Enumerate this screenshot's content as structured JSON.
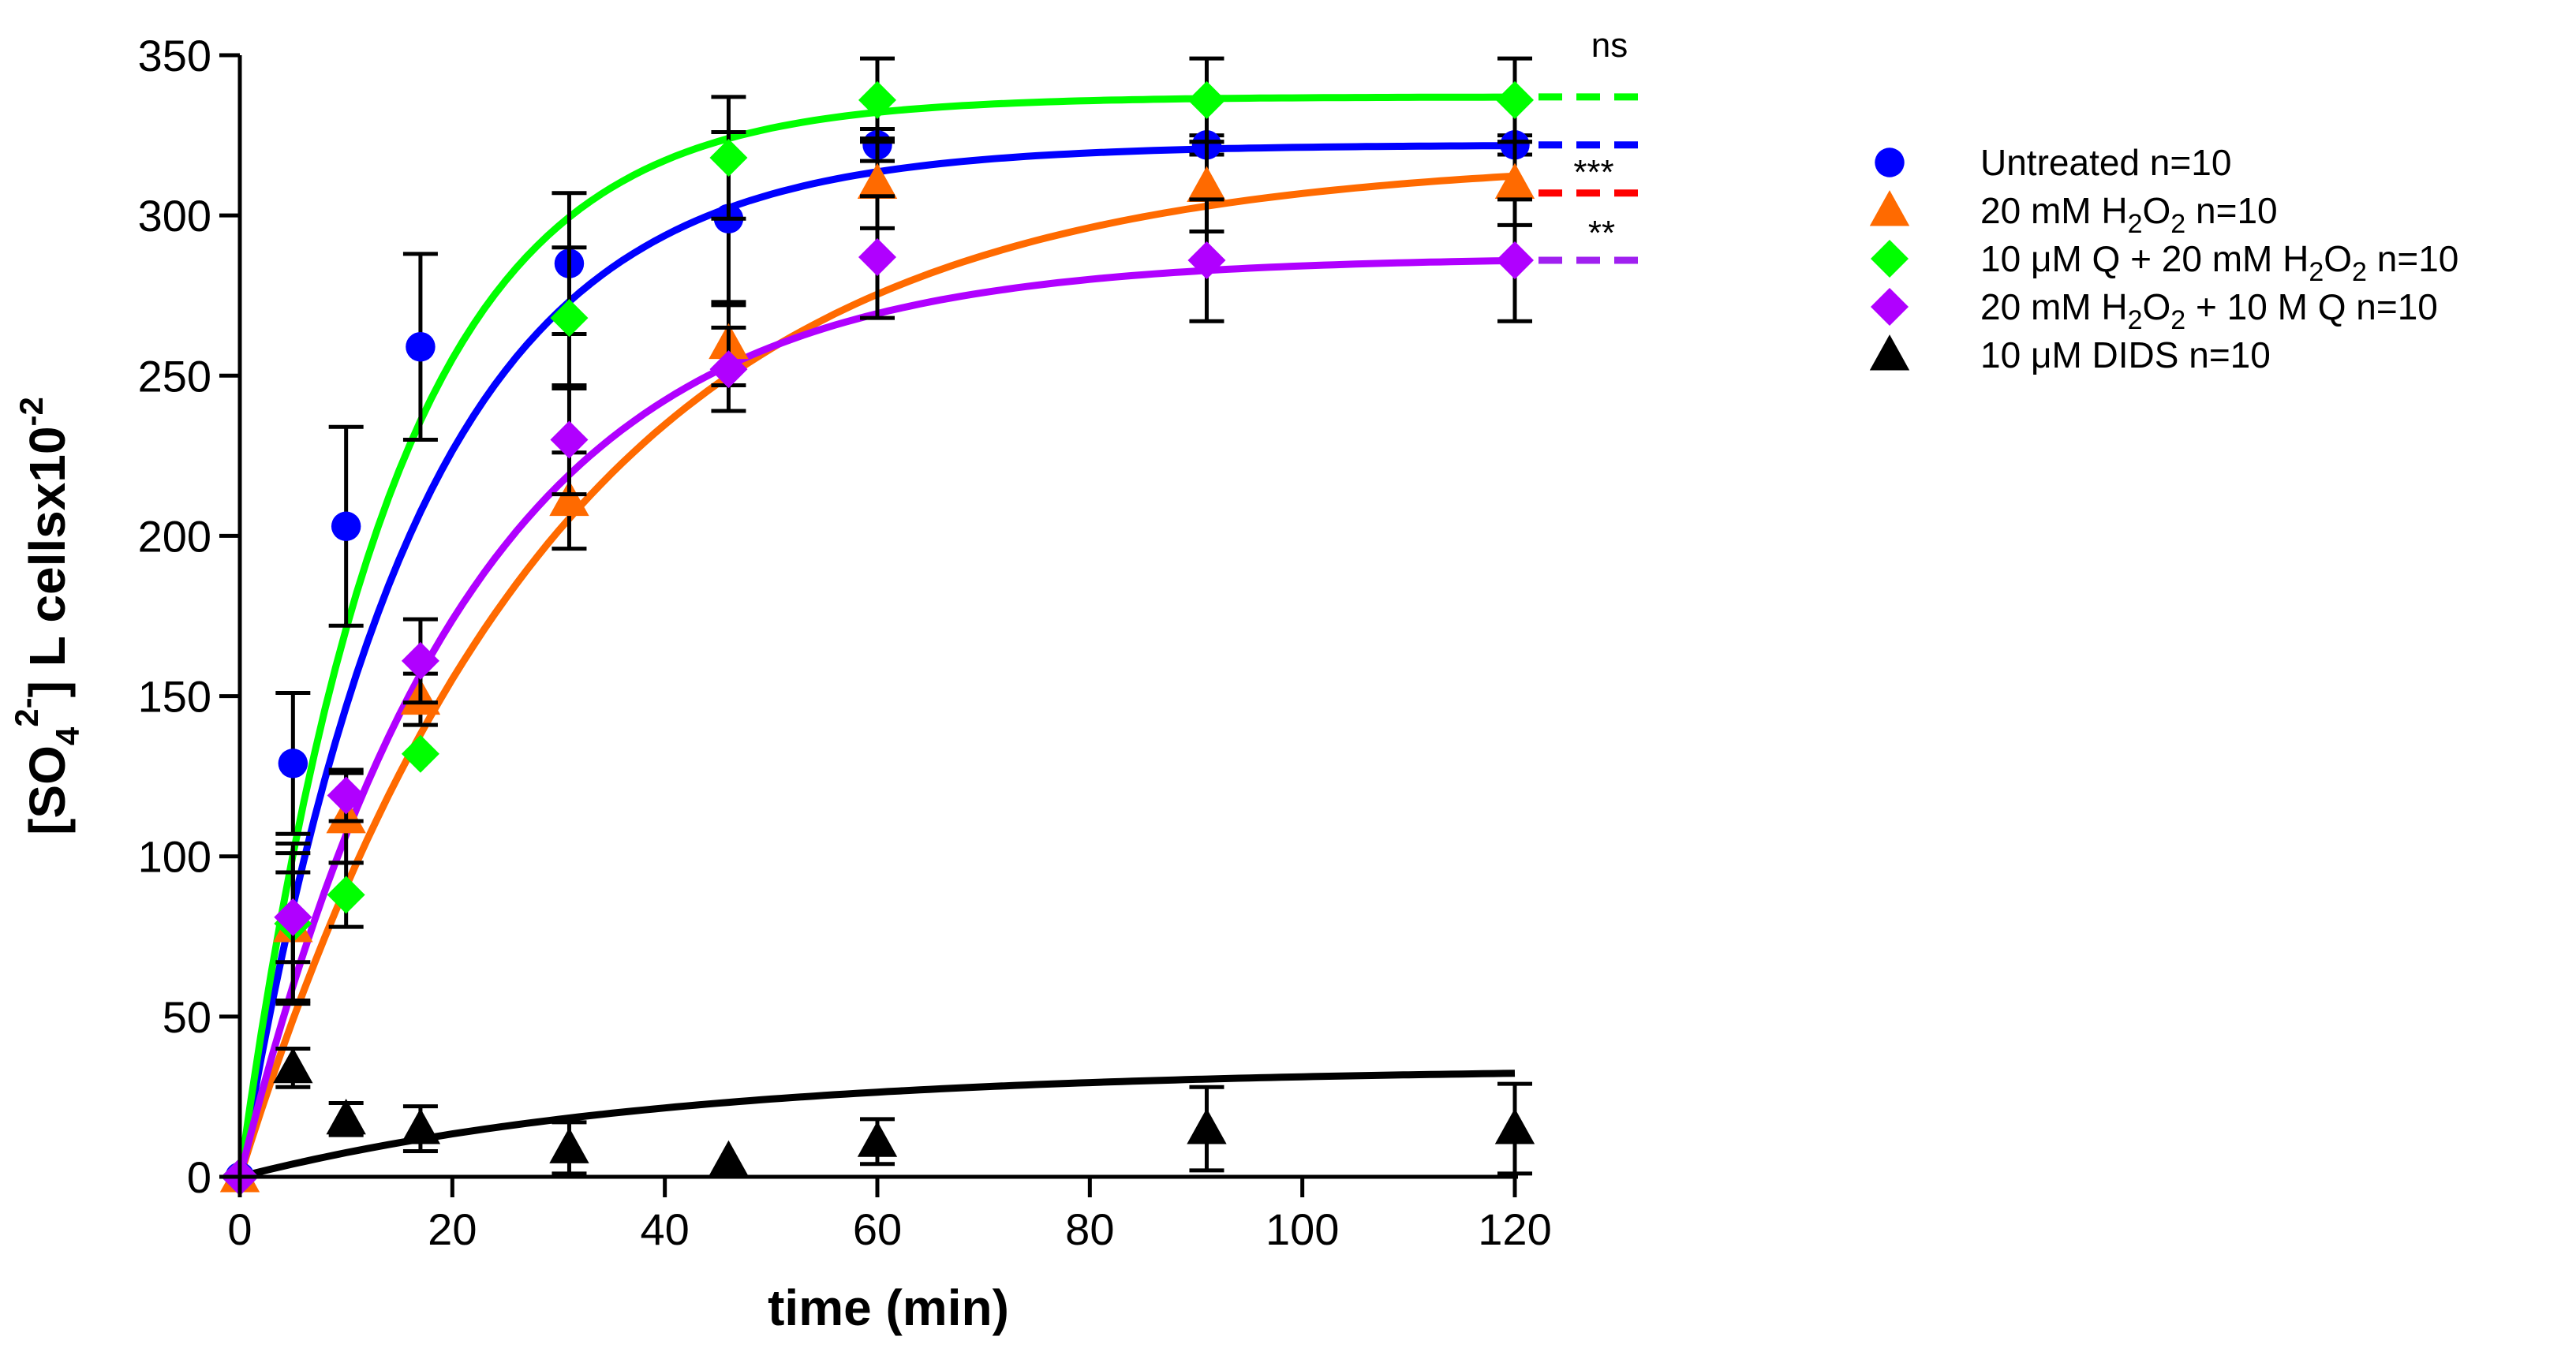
{
  "chart_data": {
    "type": "scatter",
    "title": "",
    "xlabel": "time (min)",
    "ylabel": "[SO4 2-] L cellsx10-2",
    "ylabel_parts": {
      "a": "[SO",
      "b": "4",
      "c": "2-",
      "d": "] L cellsx10",
      "e": "-2"
    },
    "xlim": [
      0,
      120
    ],
    "ylim": [
      0,
      350
    ],
    "xticks": [
      0,
      20,
      40,
      60,
      80,
      100,
      120
    ],
    "yticks": [
      0,
      50,
      100,
      150,
      200,
      250,
      300,
      350
    ],
    "xtick_labels": [
      "0",
      "20",
      "40",
      "60",
      "80",
      "100",
      "120"
    ],
    "ytick_labels": [
      "0",
      "50",
      "100",
      "150",
      "200",
      "250",
      "300",
      "350"
    ],
    "legend_position": "right",
    "series": [
      {
        "name": "Untreated n=10",
        "label_parts": [
          "Untreated n=10"
        ],
        "marker": "circle",
        "color": "#0000ff",
        "line_color": "#0000ff",
        "x": [
          0,
          5,
          10,
          17,
          31,
          46,
          60,
          91,
          120
        ],
        "y": [
          0,
          129,
          203,
          259,
          285,
          299,
          322,
          322,
          322
        ],
        "err": [
          0,
          22,
          31,
          29,
          22,
          27,
          5,
          3,
          3
        ],
        "fit": {
          "plateau": 322,
          "k": 0.0608
        },
        "dash_color": "#0000ff",
        "dash_value": 322
      },
      {
        "name": "20 mM H2O2 n=10",
        "label_parts": [
          "20 mM H",
          "2",
          "O",
          "2",
          " n=10"
        ],
        "marker": "triangle",
        "color": "#ff6a00",
        "line_color": "#ff6a00",
        "x": [
          0,
          5,
          10,
          17,
          31,
          46,
          60,
          91,
          120
        ],
        "y": [
          0,
          78,
          112,
          149,
          211,
          260,
          310,
          309,
          310
        ],
        "err": [
          0,
          23,
          14,
          8,
          15,
          13,
          14,
          14,
          13
        ],
        "fit": {
          "plateau": 318,
          "k": 0.0335
        },
        "dash_color": "#ff0000",
        "dash_value": 307
      },
      {
        "name": "10 μM Q + 20 mM H2O2 n=10",
        "label_parts": [
          "10 μM Q + 20 mM H",
          "2",
          "O",
          "2",
          " n=10"
        ],
        "marker": "diamond",
        "color": "#00ff00",
        "line_color": "#00ff00",
        "x": [
          0,
          5,
          10,
          17,
          31,
          46,
          60,
          91,
          120
        ],
        "y": [
          0,
          79,
          88,
          132,
          268,
          318,
          336,
          336,
          336
        ],
        "err": [
          0,
          25,
          10,
          0,
          22,
          19,
          13,
          13,
          13
        ],
        "fit": {
          "plateau": 337,
          "k": 0.0708
        },
        "dash_color": "#00ff00",
        "dash_value": 337
      },
      {
        "name": "20 mM H2O2 + 10 M Q n=10",
        "label_parts": [
          "20 mM H",
          "2",
          "O",
          "2",
          " + 10 M Q n=10"
        ],
        "marker": "diamond",
        "color": "#b000ff",
        "line_color": "#b000ff",
        "x": [
          0,
          5,
          10,
          17,
          31,
          46,
          60,
          91,
          120
        ],
        "y": [
          0,
          81,
          119,
          161,
          230,
          252,
          287,
          286,
          286
        ],
        "err": [
          0,
          14,
          8,
          13,
          17,
          13,
          19,
          19,
          19
        ],
        "fit": {
          "plateau": 287,
          "k": 0.0465
        },
        "dash_color": "#a020f0",
        "dash_value": 286
      },
      {
        "name": "10 μM DIDS n=10",
        "label_parts": [
          "10 μM DIDS n=10"
        ],
        "marker": "triangle",
        "color": "#000000",
        "line_color": "#000000",
        "x": [
          5,
          10,
          17,
          31,
          46,
          60,
          91,
          120
        ],
        "y": [
          34,
          18,
          15,
          9,
          5,
          11,
          15,
          15
        ],
        "err": [
          6,
          5,
          7,
          8,
          0,
          7,
          13,
          14
        ],
        "fit": {
          "plateau": 34,
          "k": 0.025
        },
        "dash_color": null,
        "dash_value": null
      }
    ],
    "annotations": [
      {
        "text": "ns",
        "x": 120,
        "y": 350
      },
      {
        "text": "***",
        "x": 120,
        "y": 313
      },
      {
        "text": "**",
        "x": 120,
        "y": 292
      }
    ]
  }
}
